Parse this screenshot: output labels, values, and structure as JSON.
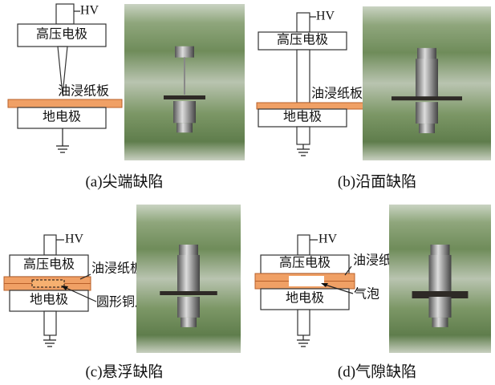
{
  "panels": [
    {
      "caption": "(a)尖端缺陷",
      "hv": "HV",
      "high_electrode": "高压电极",
      "ground_electrode": "地电极",
      "callouts": [
        "油浸纸板"
      ]
    },
    {
      "caption": "(b)沿面缺陷",
      "hv": "HV",
      "high_electrode": "高压电极",
      "ground_electrode": "地电极",
      "callouts": [
        "油浸纸板"
      ]
    },
    {
      "caption": "(c)悬浮缺陷",
      "hv": "HV",
      "high_electrode": "高压电极",
      "ground_electrode": "地电极",
      "callouts": [
        "油浸纸板",
        "圆形铜片"
      ]
    },
    {
      "caption": "(d)气隙缺陷",
      "hv": "HV",
      "high_electrode": "高压电极",
      "ground_electrode": "地电极",
      "callouts": [
        "油浸纸",
        "气泡"
      ]
    }
  ]
}
